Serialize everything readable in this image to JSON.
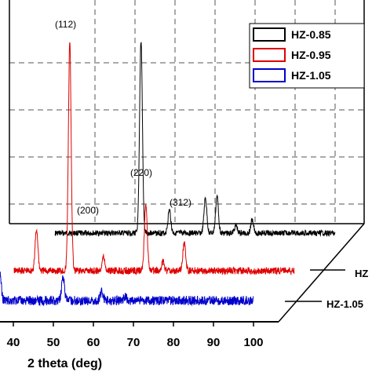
{
  "chart_data": {
    "type": "line",
    "title": "",
    "xlabel": "2 theta (deg)",
    "ylabel": "",
    "xlim": [
      30,
      100
    ],
    "x_ticks": [
      40,
      50,
      60,
      70,
      80,
      90,
      100
    ],
    "x_tick_labels": [
      "40",
      "50",
      "60",
      "70",
      "80",
      "90",
      "100"
    ],
    "grid": true,
    "legend_position": "top-right",
    "legend": [
      "HZ-0.85",
      "HZ-0.95",
      "HZ-1.05"
    ],
    "depth_labels": [
      "HZ",
      "HZ-1.05"
    ],
    "peak_labels": [
      {
        "text": "(112)",
        "x": 51.5
      },
      {
        "text": "(200)",
        "x": 60.0
      },
      {
        "text": "(220)",
        "x": 70.2
      },
      {
        "text": "(312)",
        "x": 79.3
      }
    ],
    "series": [
      {
        "name": "HZ-0.85",
        "color": "#000000",
        "peaks": [
          [
            51.5,
            1.0
          ],
          [
            58.6,
            0.12
          ],
          [
            67.6,
            0.18
          ],
          [
            70.5,
            0.19
          ],
          [
            75.2,
            0.04
          ],
          [
            79.3,
            0.07
          ]
        ]
      },
      {
        "name": "HZ-0.95",
        "color": "#e00000",
        "peaks": [
          [
            35.6,
            0.18
          ],
          [
            43.9,
            1.0
          ],
          [
            52.3,
            0.06
          ],
          [
            62.9,
            0.3
          ],
          [
            67.2,
            0.04
          ],
          [
            72.5,
            0.12
          ]
        ]
      },
      {
        "name": "HZ-1.05",
        "color": "#0000cc",
        "peaks": [
          [
            31.4,
            0.75
          ],
          [
            36.6,
            0.22
          ],
          [
            52.4,
            0.18
          ],
          [
            62.1,
            0.07
          ],
          [
            67.9,
            0.03
          ]
        ]
      }
    ]
  }
}
